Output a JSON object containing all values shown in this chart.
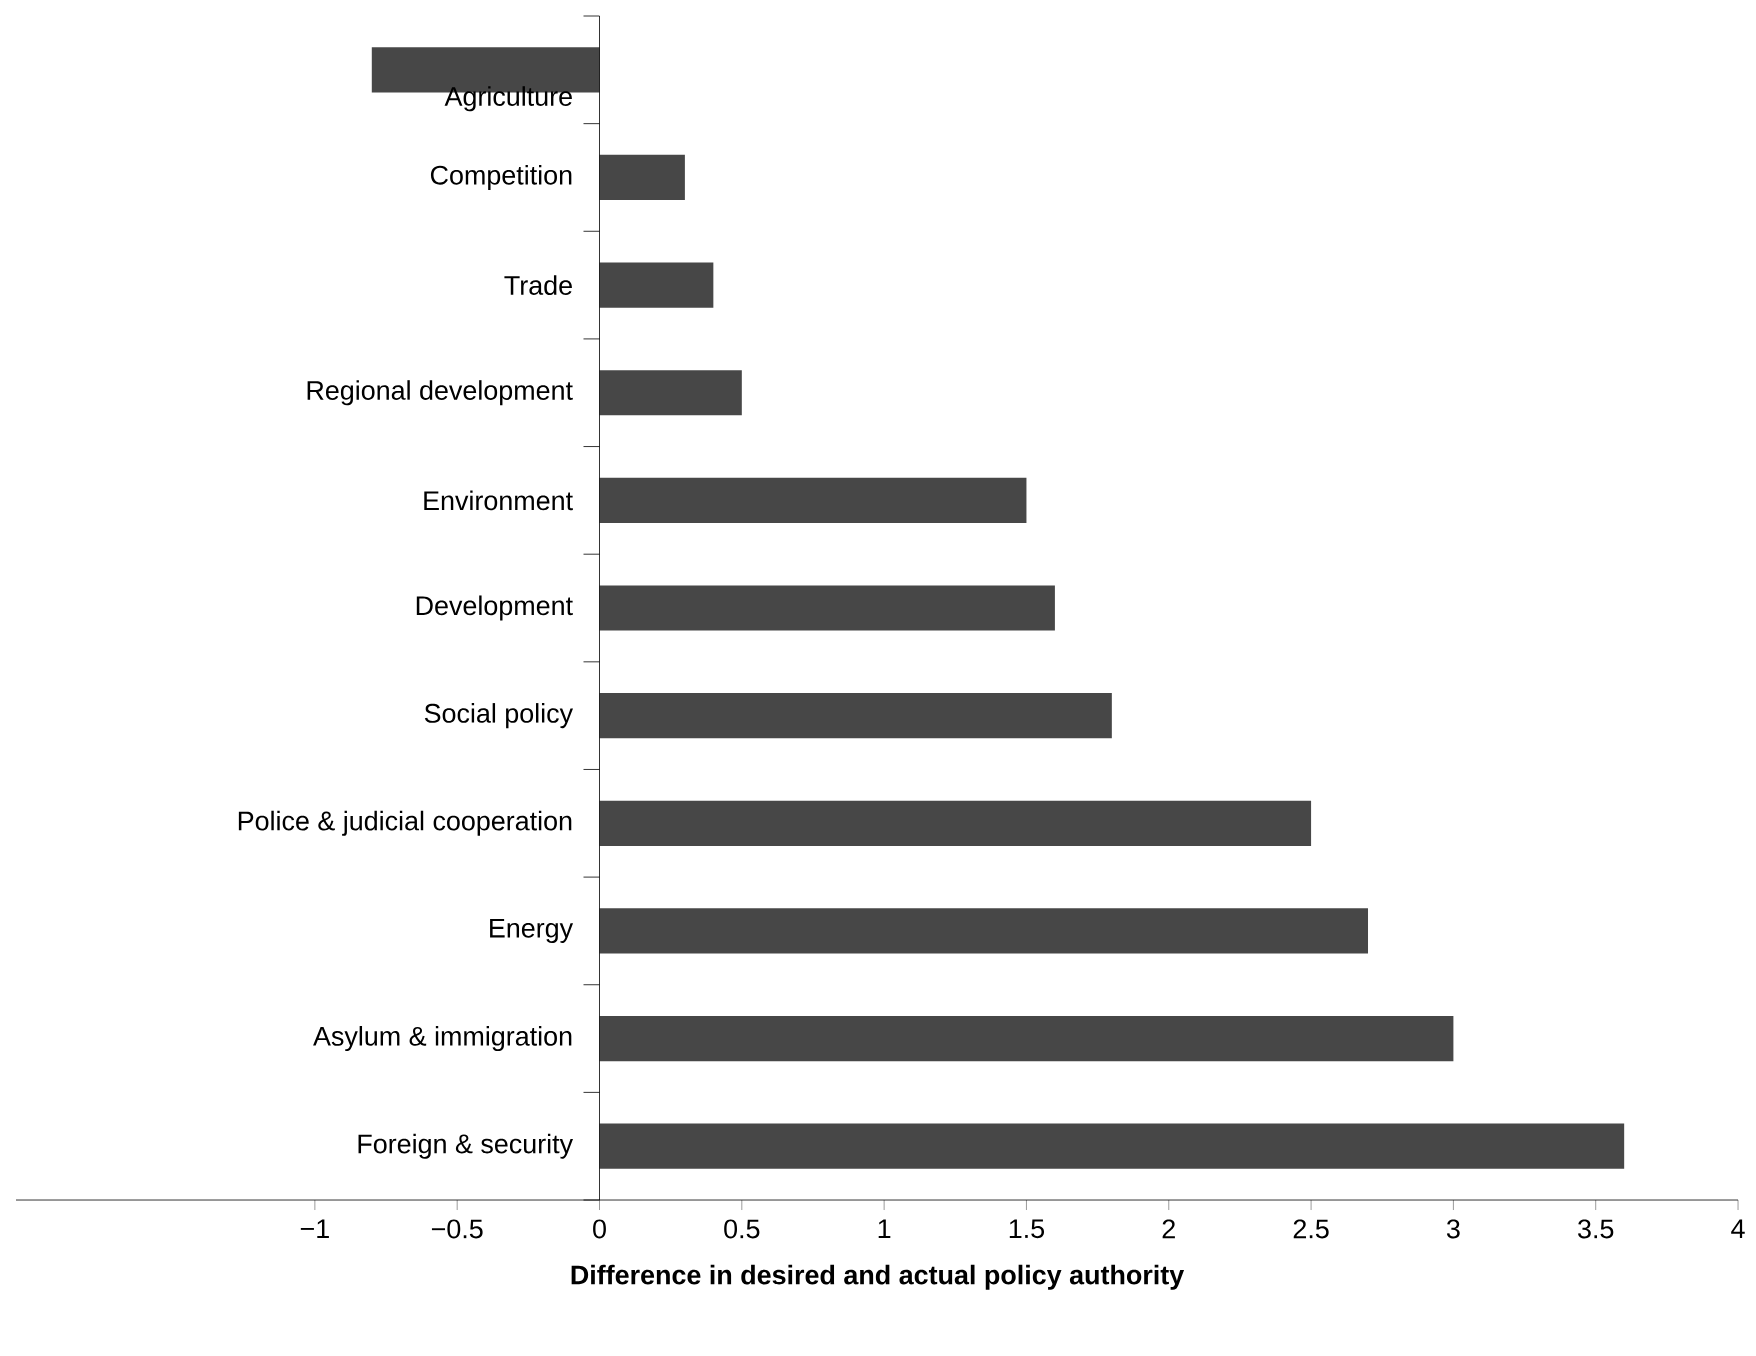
{
  "chart_data": {
    "type": "bar",
    "orientation": "horizontal",
    "categories": [
      "Agriculture",
      "Competition",
      "Trade",
      "Regional development",
      "Environment",
      "Development",
      "Social policy",
      "Police & judicial cooperation",
      "Energy",
      "Asylum & immigration",
      "Foreign & security"
    ],
    "values": [
      -0.8,
      0.3,
      0.4,
      0.5,
      1.5,
      1.6,
      1.8,
      2.5,
      2.7,
      3.0,
      3.6
    ],
    "color": "#474747",
    "xlim": [
      -2.05,
      4
    ],
    "xticks": [
      {
        "value": -1,
        "label": "−1"
      },
      {
        "value": -0.5,
        "label": "−0.5"
      },
      0,
      0.5,
      1,
      1.5,
      2,
      2.5,
      3,
      3.5,
      4
    ],
    "xlabel": "Difference in desired and actual policy authority"
  }
}
